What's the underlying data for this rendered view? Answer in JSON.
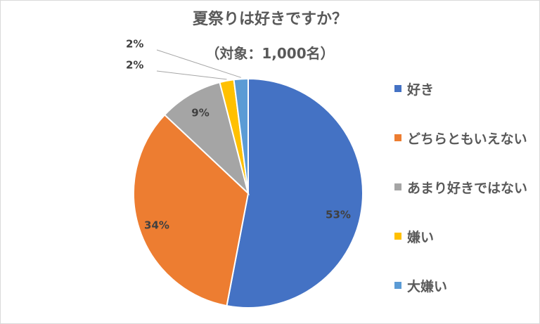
{
  "chart_data": {
    "type": "pie",
    "title": "夏祭りは好きですか？",
    "subtitle": "（対象：1,000名）",
    "categories": [
      "好き",
      "どちらともいえない",
      "あまり好きではない",
      "嫌い",
      "大嫌い"
    ],
    "values": [
      53,
      34,
      9,
      2,
      2
    ],
    "value_labels": [
      "53%",
      "34%",
      "9%",
      "2%",
      "2%"
    ],
    "colors": [
      "#4472c4",
      "#ed7d31",
      "#a5a5a5",
      "#ffc000",
      "#5b9bd5"
    ],
    "legend_position": "right",
    "start_angle": "12 o'clock",
    "direction": "clockwise"
  }
}
